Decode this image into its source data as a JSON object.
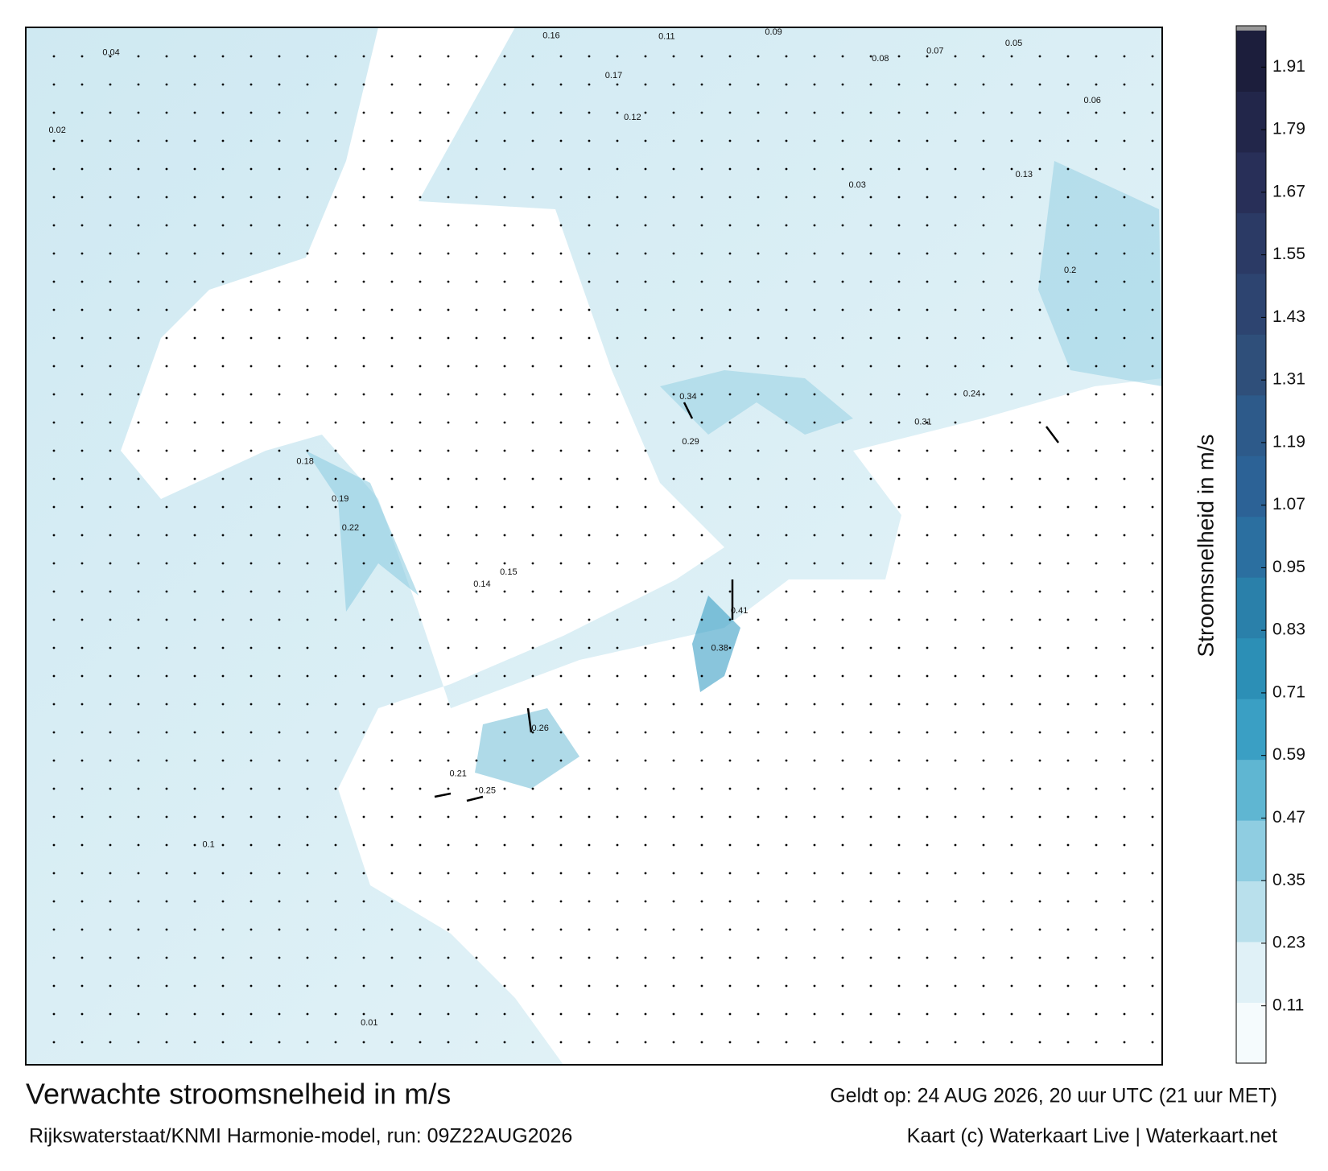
{
  "chart_data": {
    "type": "map",
    "title": "Verwachte stroomsnelheid in m/s",
    "subtitle": "Rijkswaterstaat/KNMI Harmonie-model, run: 09Z22AUG2026",
    "valid_time": "Geldt op: 24 AUG 2026, 20 uur UTC (21 uur MET)",
    "credit": "Kaart (c) Waterkaart Live | Waterkaart.net",
    "colorbar_label": "Stroomsnelheid in m/s",
    "clim": [
      0,
      1.98
    ],
    "cticks": [
      0.11,
      0.23,
      0.35,
      0.47,
      0.59,
      0.71,
      0.83,
      0.95,
      1.07,
      1.19,
      1.31,
      1.43,
      1.55,
      1.67,
      1.79,
      1.91
    ],
    "colors": [
      "#f5fbfd",
      "#e0f1f7",
      "#b9e0ec",
      "#8fcde1",
      "#5fb6d2",
      "#3a9fc4",
      "#2c8fb6",
      "#2a80aa",
      "#2b6fa0",
      "#2c6296",
      "#2d5a8a",
      "#2f4f7a",
      "#2d4470",
      "#2b3a65",
      "#282f58",
      "#22264a",
      "#1c1e3c"
    ],
    "map_labels": [
      "0.41",
      "0.38",
      "0.34",
      "0.31",
      "0.26",
      "0.29",
      "0.22",
      "0.19",
      "0.18",
      "0.17",
      "0.16",
      "0.13",
      "0.12",
      "0.11",
      "0.09",
      "0.08",
      "0.07",
      "0.06",
      "0.05",
      "0.04",
      "0.03",
      "0.02",
      "0.01",
      "0.24",
      "0.25",
      "0.21",
      "0.15",
      "0.14",
      "0.1",
      "0.2"
    ]
  }
}
